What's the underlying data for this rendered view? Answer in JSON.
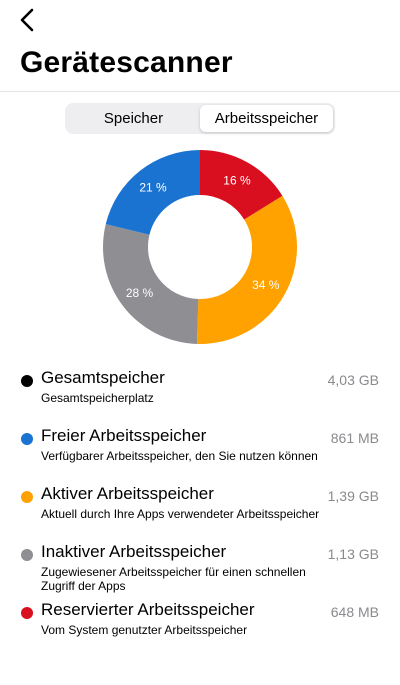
{
  "header": {
    "back_icon": "chevron-left-icon",
    "title": "Gerätescanner"
  },
  "tabs": [
    {
      "label": "Speicher",
      "active": false
    },
    {
      "label": "Arbeitsspeicher",
      "active": true
    }
  ],
  "chart_data": {
    "type": "pie",
    "slices": [
      {
        "label": "16 %",
        "value": 16,
        "color": "#d90e1f"
      },
      {
        "label": "34 %",
        "value": 34,
        "color": "#ffa200"
      },
      {
        "label": "28 %",
        "value": 28,
        "color": "#8e8e93"
      },
      {
        "label": "21 %",
        "value": 21,
        "color": "#1a73d1"
      }
    ]
  },
  "legend": [
    {
      "title": "Gesamtspeicher",
      "desc": "Gesamtspeicherplatz",
      "value": "4,03 GB",
      "color": "#000000"
    },
    {
      "title": "Freier Arbeitsspeicher",
      "desc": "Verfügbarer Arbeitsspeicher, den Sie nutzen können",
      "value": "861 MB",
      "color": "#1a73d1"
    },
    {
      "title": "Aktiver Arbeitsspeicher",
      "desc": "Aktuell durch Ihre Apps verwendeter Arbeitsspeicher",
      "value": "1,39 GB",
      "color": "#ffa200"
    },
    {
      "title": "Inaktiver Arbeitsspeicher",
      "desc": "Zugewiesener Arbeitsspeicher für einen schnellen Zugriff der Apps",
      "value": "1,13 GB",
      "color": "#8e8e93"
    },
    {
      "title": "Reservierter Arbeitsspeicher",
      "desc": "Vom System genutzter Arbeitsspeicher",
      "value": "648 MB",
      "color": "#d90e1f"
    }
  ]
}
